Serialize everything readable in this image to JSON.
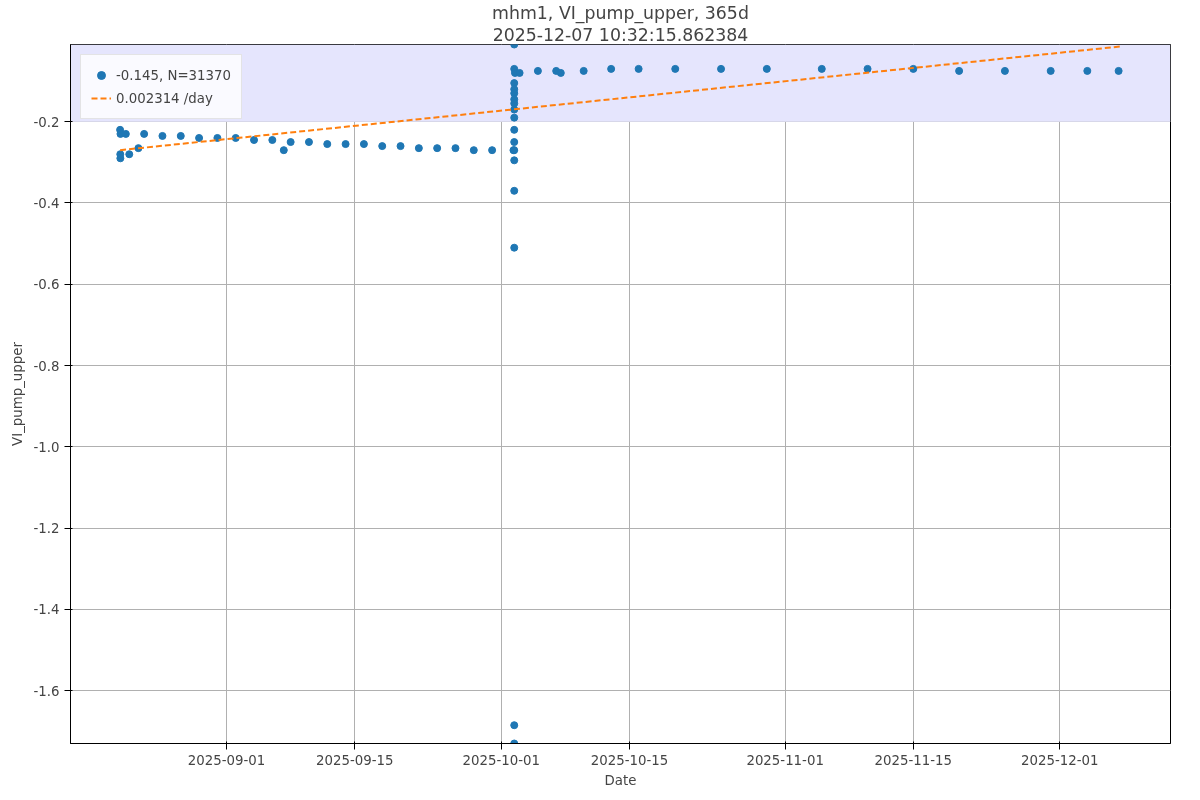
{
  "chart_data": {
    "type": "scatter",
    "title": "mhm1, VI_pump_upper, 365d",
    "subtitle": "2025-12-07 10:32:15.862384",
    "xlabel": "Date",
    "ylabel": "VI_pump_upper",
    "xlim": [
      "2025-08-14T23:00",
      "2025-12-13T02:00"
    ],
    "xticks": [
      "2025-09-01",
      "2025-09-15",
      "2025-10-01",
      "2025-10-15",
      "2025-11-01",
      "2025-11-15",
      "2025-12-01"
    ],
    "ylim": [
      -1.73,
      -0.01
    ],
    "yticks": [
      -1.6,
      -1.4,
      -1.2,
      {
        "value": -1.0,
        "label": "-1.0"
      },
      -0.8,
      -0.6,
      -0.4,
      -0.2
    ],
    "grid": true,
    "legend": "top left",
    "bands": [
      {
        "axis": "y",
        "from": -0.2,
        "to": -0.01,
        "color": "#e5e5fd"
      }
    ],
    "series": [
      {
        "name": "-0.145, N=31370",
        "color": "#1f77b4",
        "marker": "circle",
        "x": [
          "2025-08-20T09:00",
          "2025-08-20T10:00",
          "2025-08-20T09:30",
          "2025-08-20T09:40",
          "2025-08-21T09:00",
          "2025-08-22T09:00",
          "2025-09-07T06:00",
          "2025-08-21",
          "2025-08-23",
          "2025-08-25",
          "2025-08-27",
          "2025-08-29",
          "2025-08-31",
          "2025-09-02",
          "2025-09-04",
          "2025-09-06",
          "2025-09-08",
          "2025-09-10",
          "2025-09-12",
          "2025-09-14",
          "2025-09-16",
          "2025-09-18",
          "2025-09-20",
          "2025-09-22",
          "2025-09-24",
          "2025-09-26",
          "2025-09-28",
          "2025-09-30",
          "2025-10-02T08:00",
          "2025-10-02T10:00",
          "2025-10-02T10:00",
          "2025-10-02T10:00",
          "2025-10-02T10:00",
          "2025-10-02T10:00",
          "2025-10-02T10:00",
          "2025-10-02T10:00",
          "2025-10-02T10:00",
          "2025-10-02T10:00",
          "2025-10-02T10:00",
          "2025-10-02T10:00",
          "2025-10-02T10:00",
          "2025-10-02T10:00",
          "2025-10-02T10:00",
          "2025-10-02T10:00",
          "2025-10-02T10:00",
          "2025-10-02T10:00",
          "2025-10-02T12:00",
          "2025-10-03",
          "2025-10-05",
          "2025-10-07",
          "2025-10-07T12:00",
          "2025-10-10",
          "2025-10-13",
          "2025-10-16",
          "2025-10-20",
          "2025-10-25",
          "2025-10-30",
          "2025-11-05",
          "2025-11-10",
          "2025-11-15",
          "2025-11-20",
          "2025-11-25",
          "2025-11-30",
          "2025-12-04",
          "2025-12-07T10:00"
        ],
        "values": [
          -0.22,
          -0.23,
          -0.28,
          -0.29,
          -0.28,
          -0.265,
          -0.27,
          -0.23,
          -0.23,
          -0.235,
          -0.235,
          -0.24,
          -0.24,
          -0.24,
          -0.245,
          -0.245,
          -0.25,
          -0.25,
          -0.255,
          -0.255,
          -0.255,
          -0.26,
          -0.26,
          -0.265,
          -0.265,
          -0.265,
          -0.27,
          -0.27,
          -0.27,
          -0.01,
          -0.07,
          -0.105,
          -0.12,
          -0.13,
          -0.145,
          -0.155,
          -0.17,
          -0.19,
          -0.22,
          -0.25,
          -0.27,
          -0.295,
          -0.37,
          -0.51,
          -1.685,
          -1.73,
          -0.08,
          -0.08,
          -0.075,
          -0.075,
          -0.08,
          -0.075,
          -0.07,
          -0.07,
          -0.07,
          -0.07,
          -0.07,
          -0.07,
          -0.07,
          -0.07,
          -0.075,
          -0.075,
          -0.075,
          -0.075,
          -0.075
        ]
      },
      {
        "name": "0.002314 /day",
        "color": "#ff7f0e",
        "type": "line",
        "line_style": "dashed",
        "x": [
          "2025-08-20T09:00",
          "2025-12-07T13:00"
        ],
        "values": [
          -0.27,
          -0.015
        ]
      }
    ]
  }
}
